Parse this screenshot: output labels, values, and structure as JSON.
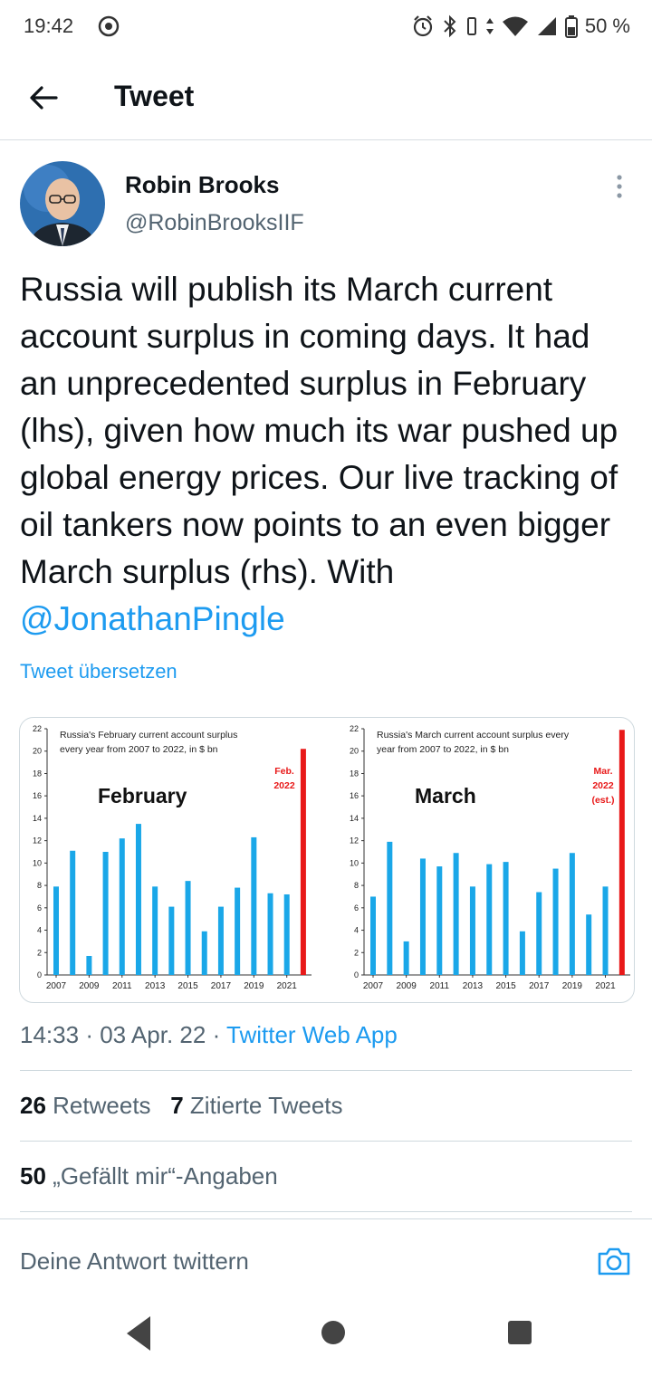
{
  "status_bar": {
    "time": "19:42",
    "battery": "50 %"
  },
  "header": {
    "title": "Tweet"
  },
  "tweet": {
    "author_name": "Robin Brooks",
    "author_handle": "@RobinBrooksIIF",
    "text_main": "Russia will publish its March current account surplus in coming days. It had an unprecedented surplus in February (lhs), given how much its war pushed up global energy prices. Our live tracking of oil tankers now points to an even bigger March surplus (rhs). With ",
    "mention": "@JonathanPingle",
    "translate_label": "Tweet übersetzen",
    "time": "14:33",
    "date": "03 Apr. 22",
    "source": "Twitter Web App",
    "separator": "·"
  },
  "stats": {
    "retweets_count": "26",
    "retweets_label": "Retweets",
    "quotes_count": "7",
    "quotes_label": "Zitierte Tweets",
    "likes_count": "50",
    "likes_label": "„Gefällt mir“-Angaben"
  },
  "reply": {
    "placeholder": "Deine Antwort twittern"
  },
  "chart_data": [
    {
      "type": "bar",
      "title": "Russia's February current account surplus every year from 2007 to 2022, in $ bn",
      "big_label": "February",
      "highlight_label": [
        "Feb.",
        "2022"
      ],
      "x": [
        2007,
        2008,
        2009,
        2010,
        2011,
        2012,
        2013,
        2014,
        2015,
        2016,
        2017,
        2018,
        2019,
        2020,
        2021,
        2022
      ],
      "values": [
        7.9,
        11.1,
        1.7,
        11.0,
        12.2,
        13.5,
        7.9,
        6.1,
        8.4,
        3.9,
        6.1,
        7.8,
        12.3,
        7.3,
        7.2,
        20.2
      ],
      "x_tick_labels": [
        "2007",
        "2009",
        "2011",
        "2013",
        "2015",
        "2017",
        "2019",
        "2021"
      ],
      "y_tick_labels": [
        "0",
        "2",
        "4",
        "6",
        "8",
        "10",
        "12",
        "14",
        "16",
        "18",
        "20",
        "22"
      ],
      "ylim": [
        0,
        22
      ],
      "bar_color": "#1aa7e8",
      "highlight_color": "#e81919"
    },
    {
      "type": "bar",
      "title": "Russia's March current account surplus every year from 2007 to 2022, in $ bn",
      "big_label": "March",
      "highlight_label": [
        "Mar.",
        "2022",
        "(est.)"
      ],
      "x": [
        2007,
        2008,
        2009,
        2010,
        2011,
        2012,
        2013,
        2014,
        2015,
        2016,
        2017,
        2018,
        2019,
        2020,
        2021,
        2022
      ],
      "values": [
        7.0,
        11.9,
        3.0,
        10.4,
        9.7,
        10.9,
        7.9,
        9.9,
        10.1,
        3.9,
        7.4,
        9.5,
        10.9,
        5.4,
        7.9,
        21.9
      ],
      "x_tick_labels": [
        "2007",
        "2009",
        "2011",
        "2013",
        "2015",
        "2017",
        "2019",
        "2021"
      ],
      "y_tick_labels": [
        "0",
        "2",
        "4",
        "6",
        "8",
        "10",
        "12",
        "14",
        "16",
        "18",
        "20",
        "22"
      ],
      "ylim": [
        0,
        22
      ],
      "bar_color": "#1aa7e8",
      "highlight_color": "#e81919"
    }
  ]
}
